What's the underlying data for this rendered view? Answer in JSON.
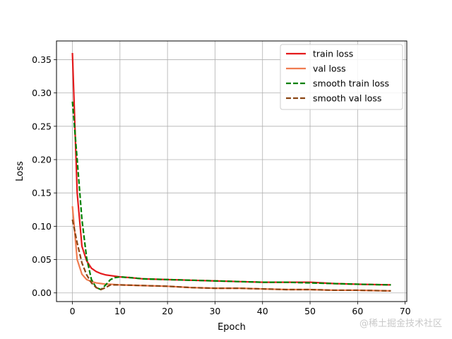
{
  "chart_data": {
    "type": "line",
    "xlabel": "Epoch",
    "ylabel": "Loss",
    "xlim": [
      -3.35,
      70.35
    ],
    "ylim": [
      -0.013,
      0.378
    ],
    "xticks": [
      0,
      10,
      20,
      30,
      40,
      50,
      60,
      70
    ],
    "yticks": [
      0.0,
      0.05,
      0.1,
      0.15,
      0.2,
      0.25,
      0.3,
      0.35
    ],
    "grid": true,
    "legend_position": "upper-right",
    "series": [
      {
        "name": "train loss",
        "color": "#e41a1c",
        "style": "solid",
        "points": [
          [
            0,
            0.36
          ],
          [
            1,
            0.15
          ],
          [
            2,
            0.07
          ],
          [
            3,
            0.048
          ],
          [
            4,
            0.037
          ],
          [
            5,
            0.032
          ],
          [
            6,
            0.029
          ],
          [
            7,
            0.027
          ],
          [
            8,
            0.026
          ],
          [
            9,
            0.025
          ],
          [
            10,
            0.024
          ],
          [
            12,
            0.023
          ],
          [
            15,
            0.021
          ],
          [
            20,
            0.02
          ],
          [
            25,
            0.019
          ],
          [
            30,
            0.018
          ],
          [
            35,
            0.017
          ],
          [
            40,
            0.016
          ],
          [
            45,
            0.016
          ],
          [
            50,
            0.016
          ],
          [
            55,
            0.014
          ],
          [
            60,
            0.013
          ],
          [
            67,
            0.012
          ]
        ]
      },
      {
        "name": "val loss",
        "color": "#f07c50",
        "style": "solid",
        "points": [
          [
            0,
            0.13
          ],
          [
            1,
            0.05
          ],
          [
            2,
            0.028
          ],
          [
            3,
            0.02
          ],
          [
            4,
            0.017
          ],
          [
            5,
            0.015
          ],
          [
            6,
            0.014
          ],
          [
            7,
            0.013
          ],
          [
            8,
            0.013
          ],
          [
            10,
            0.012
          ],
          [
            15,
            0.011
          ],
          [
            20,
            0.01
          ],
          [
            25,
            0.008
          ],
          [
            30,
            0.007
          ],
          [
            35,
            0.007
          ],
          [
            40,
            0.006
          ],
          [
            45,
            0.005
          ],
          [
            50,
            0.005
          ],
          [
            55,
            0.004
          ],
          [
            60,
            0.004
          ],
          [
            67,
            0.003
          ]
        ]
      },
      {
        "name": "smooth train loss",
        "color": "#008000",
        "style": "dashed",
        "points": [
          [
            0,
            0.287
          ],
          [
            1,
            0.2
          ],
          [
            2,
            0.11
          ],
          [
            3,
            0.052
          ],
          [
            4,
            0.02
          ],
          [
            5,
            0.008
          ],
          [
            6,
            0.005
          ],
          [
            7,
            0.012
          ],
          [
            8,
            0.02
          ],
          [
            9,
            0.023
          ],
          [
            10,
            0.024
          ],
          [
            12,
            0.023
          ],
          [
            15,
            0.021
          ],
          [
            20,
            0.02
          ],
          [
            25,
            0.019
          ],
          [
            30,
            0.018
          ],
          [
            35,
            0.017
          ],
          [
            40,
            0.016
          ],
          [
            45,
            0.016
          ],
          [
            50,
            0.015
          ],
          [
            55,
            0.014
          ],
          [
            60,
            0.013
          ],
          [
            67,
            0.012
          ]
        ]
      },
      {
        "name": "smooth val loss",
        "color": "#8b4513",
        "style": "dashed",
        "points": [
          [
            0,
            0.11
          ],
          [
            1,
            0.075
          ],
          [
            2,
            0.045
          ],
          [
            3,
            0.027
          ],
          [
            4,
            0.015
          ],
          [
            5,
            0.008
          ],
          [
            6,
            0.005
          ],
          [
            7,
            0.008
          ],
          [
            8,
            0.012
          ],
          [
            9,
            0.012
          ],
          [
            10,
            0.012
          ],
          [
            15,
            0.011
          ],
          [
            20,
            0.01
          ],
          [
            25,
            0.008
          ],
          [
            30,
            0.007
          ],
          [
            35,
            0.007
          ],
          [
            40,
            0.006
          ],
          [
            45,
            0.005
          ],
          [
            50,
            0.005
          ],
          [
            55,
            0.004
          ],
          [
            60,
            0.004
          ],
          [
            67,
            0.003
          ]
        ]
      }
    ]
  },
  "watermark": "@稀土掘金技术社区"
}
